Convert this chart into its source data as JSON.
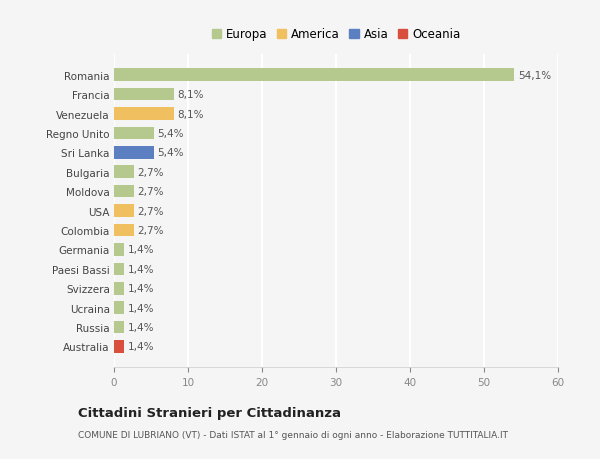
{
  "categories": [
    "Romania",
    "Francia",
    "Venezuela",
    "Regno Unito",
    "Sri Lanka",
    "Bulgaria",
    "Moldova",
    "USA",
    "Colombia",
    "Germania",
    "Paesi Bassi",
    "Svizzera",
    "Ucraina",
    "Russia",
    "Australia"
  ],
  "values": [
    54.1,
    8.1,
    8.1,
    5.4,
    5.4,
    2.7,
    2.7,
    2.7,
    2.7,
    1.4,
    1.4,
    1.4,
    1.4,
    1.4,
    1.4
  ],
  "labels": [
    "54,1%",
    "8,1%",
    "8,1%",
    "5,4%",
    "5,4%",
    "2,7%",
    "2,7%",
    "2,7%",
    "2,7%",
    "1,4%",
    "1,4%",
    "1,4%",
    "1,4%",
    "1,4%",
    "1,4%"
  ],
  "colors": [
    "#b5c98e",
    "#b5c98e",
    "#f0c060",
    "#b5c98e",
    "#5b7fc0",
    "#b5c98e",
    "#b5c98e",
    "#f0c060",
    "#f0c060",
    "#b5c98e",
    "#b5c98e",
    "#b5c98e",
    "#b5c98e",
    "#b5c98e",
    "#d94f3d"
  ],
  "legend_labels": [
    "Europa",
    "America",
    "Asia",
    "Oceania"
  ],
  "legend_colors": [
    "#b5c98e",
    "#f0c060",
    "#5b7fc0",
    "#d94f3d"
  ],
  "xlim": [
    0,
    60
  ],
  "xticks": [
    0,
    10,
    20,
    30,
    40,
    50,
    60
  ],
  "title": "Cittadini Stranieri per Cittadinanza",
  "subtitle": "COMUNE DI LUBRIANO (VT) - Dati ISTAT al 1° gennaio di ogni anno - Elaborazione TUTTITALIA.IT",
  "background_color": "#f5f5f5",
  "grid_color": "#ffffff",
  "bar_height": 0.65
}
